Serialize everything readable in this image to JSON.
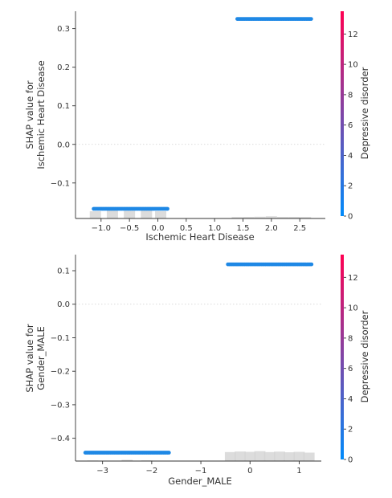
{
  "chart_data": [
    {
      "type": "scatter",
      "title": "",
      "xlabel": "Ischemic Heart Disease",
      "ylabel_lines": [
        "SHAP value for",
        "Ischemic Heart Disease"
      ],
      "xlim": [
        -1.45,
        2.95
      ],
      "ylim": [
        -0.192,
        0.345
      ],
      "xticks": [
        -1.0,
        -0.5,
        0.0,
        0.5,
        1.0,
        1.5,
        2.0,
        2.5
      ],
      "xtick_labels": [
        "−1.0",
        "−0.5",
        "0.0",
        "0.5",
        "1.0",
        "1.5",
        "2.0",
        "2.5"
      ],
      "yticks": [
        -0.1,
        0.0,
        0.1,
        0.2,
        0.3
      ],
      "ytick_labels": [
        "−0.1",
        "0.0",
        "0.1",
        "0.2",
        "0.3"
      ],
      "zero_line": true,
      "point_color": "#1E88E5",
      "series": [
        {
          "x_range": [
            -1.13,
            0.17
          ],
          "y": -0.167
        },
        {
          "x_range": [
            1.4,
            2.7
          ],
          "y": 0.325
        }
      ],
      "histogram": {
        "bins_x": [
          -1.1,
          -0.8,
          -0.5,
          -0.2,
          0.05,
          1.4,
          1.6,
          1.8,
          2.0,
          2.2,
          2.4,
          2.6
        ],
        "heights": [
          0.9,
          1.0,
          0.95,
          1.0,
          0.9,
          0.18,
          0.2,
          0.22,
          0.28,
          0.2,
          0.2,
          0.18
        ],
        "color": "#D3D3D3"
      },
      "colorbar": {
        "label": "Depressive disorder",
        "min": 0,
        "max": 13.5,
        "ticks": [
          0,
          2,
          4,
          6,
          8,
          10,
          12
        ],
        "tick_labels": [
          "0",
          "2",
          "4",
          "6",
          "8",
          "10",
          "12"
        ],
        "color_low": "#008BFB",
        "color_high": "#FF0052"
      }
    },
    {
      "type": "scatter",
      "title": "",
      "xlabel": "Gender_MALE",
      "ylabel_lines": [
        "SHAP value for",
        "Gender_MALE"
      ],
      "xlim": [
        -3.55,
        1.45
      ],
      "ylim": [
        -0.468,
        0.148
      ],
      "xticks": [
        -3,
        -2,
        -1,
        0,
        1
      ],
      "xtick_labels": [
        "−3",
        "−2",
        "−1",
        "0",
        "1"
      ],
      "yticks": [
        -0.4,
        -0.3,
        -0.2,
        -0.1,
        0.0,
        0.1
      ],
      "ytick_labels": [
        "−0.4",
        "−0.3",
        "−0.2",
        "−0.1",
        "0.0",
        "0.1"
      ],
      "zero_line": true,
      "point_color": "#1E88E5",
      "series": [
        {
          "x_range": [
            -3.35,
            -1.65
          ],
          "y": -0.443
        },
        {
          "x_range": [
            -0.45,
            1.25
          ],
          "y": 0.119
        }
      ],
      "histogram": {
        "bins_x": [
          -3.2,
          -2.5,
          -2.1,
          -0.4,
          -0.2,
          0.0,
          0.2,
          0.4,
          0.6,
          0.8,
          1.0,
          1.2
        ],
        "heights": [
          0.05,
          0.1,
          0.06,
          0.8,
          0.85,
          0.82,
          0.88,
          0.8,
          0.84,
          0.78,
          0.82,
          0.75
        ],
        "color": "#D3D3D3"
      },
      "colorbar": {
        "label": "Depressive disorder",
        "min": 0,
        "max": 13.5,
        "ticks": [
          0,
          2,
          4,
          6,
          8,
          10,
          12
        ],
        "tick_labels": [
          "0",
          "2",
          "4",
          "6",
          "8",
          "10",
          "12"
        ],
        "color_low": "#008BFB",
        "color_high": "#FF0052"
      }
    }
  ]
}
